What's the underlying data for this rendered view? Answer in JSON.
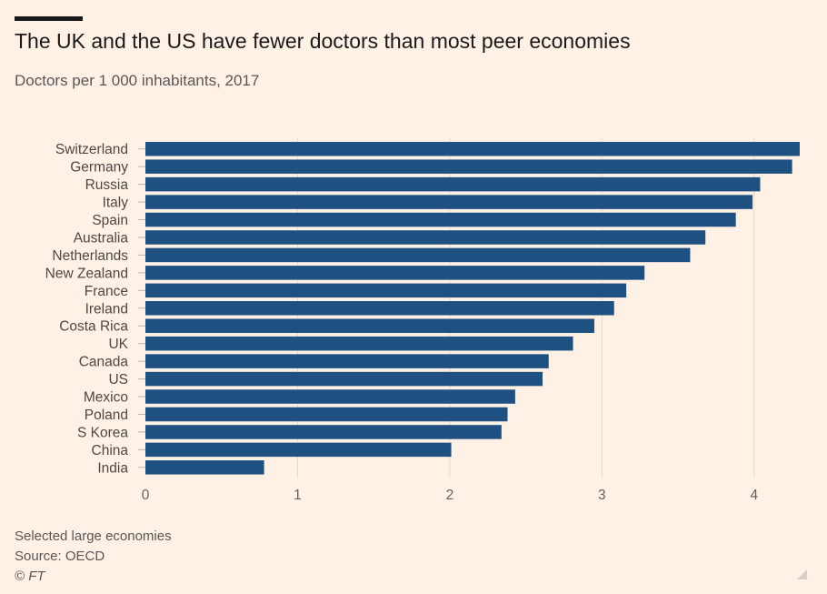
{
  "title": "The UK and the US have fewer doctors than most peer economies",
  "subtitle": "Doctors per 1 000 inhabitants, 2017",
  "footer": {
    "note": "Selected large economies",
    "source": "Source: OECD",
    "credit": "© FT"
  },
  "colors": {
    "background": "#fff1e5",
    "bar": "#1f5082",
    "grid": "#e6d9ce",
    "tick_text": "#66605c",
    "label_text": "#4d4845"
  },
  "chart_data": {
    "type": "bar",
    "orientation": "horizontal",
    "categories": [
      "Switzerland",
      "Germany",
      "Russia",
      "Italy",
      "Spain",
      "Australia",
      "Netherlands",
      "New Zealand",
      "France",
      "Ireland",
      "Costa Rica",
      "UK",
      "Canada",
      "US",
      "Mexico",
      "Poland",
      "S Korea",
      "China",
      "India"
    ],
    "values": [
      4.3,
      4.25,
      4.04,
      3.99,
      3.88,
      3.68,
      3.58,
      3.28,
      3.16,
      3.08,
      2.95,
      2.81,
      2.65,
      2.61,
      2.43,
      2.38,
      2.34,
      2.01,
      0.78
    ],
    "xlim": [
      0,
      4.3
    ],
    "xticks": [
      0,
      1,
      2,
      3,
      4
    ],
    "grid": true,
    "title": "The UK and the US have fewer doctors than most peer economies",
    "subtitle": "Doctors per 1 000 inhabitants, 2017",
    "xlabel": "",
    "ylabel": ""
  }
}
